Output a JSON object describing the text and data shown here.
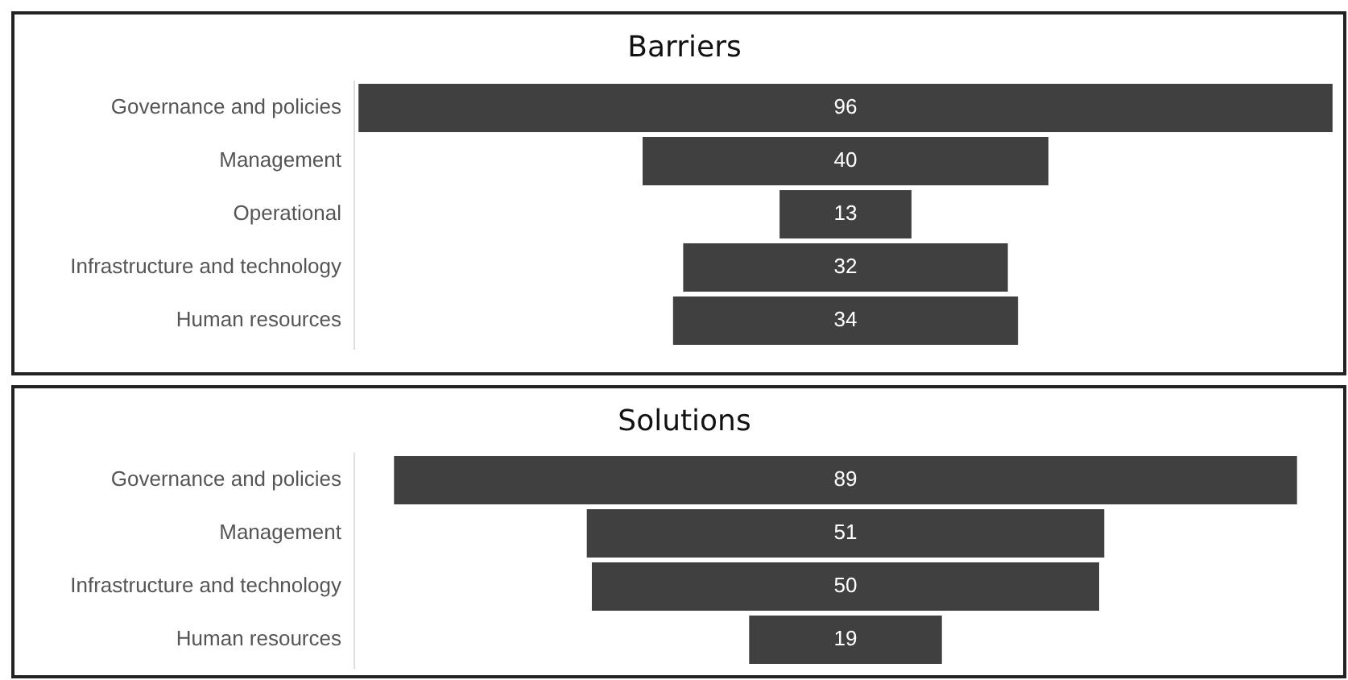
{
  "chart_data": [
    {
      "type": "other",
      "title": "Barriers",
      "categories": [
        "Governance and policies",
        "Management",
        "Operational",
        "Infrastructure and technology",
        "Human resources"
      ],
      "values": [
        96,
        40,
        13,
        32,
        34
      ],
      "color": "#404040",
      "data_labels": true
    },
    {
      "type": "other",
      "title": "Solutions",
      "categories": [
        "Governance and policies",
        "Management",
        "Infrastructure and technology",
        "Human resources"
      ],
      "values": [
        89,
        51,
        50,
        19
      ],
      "color": "#404040",
      "data_labels": true
    }
  ]
}
